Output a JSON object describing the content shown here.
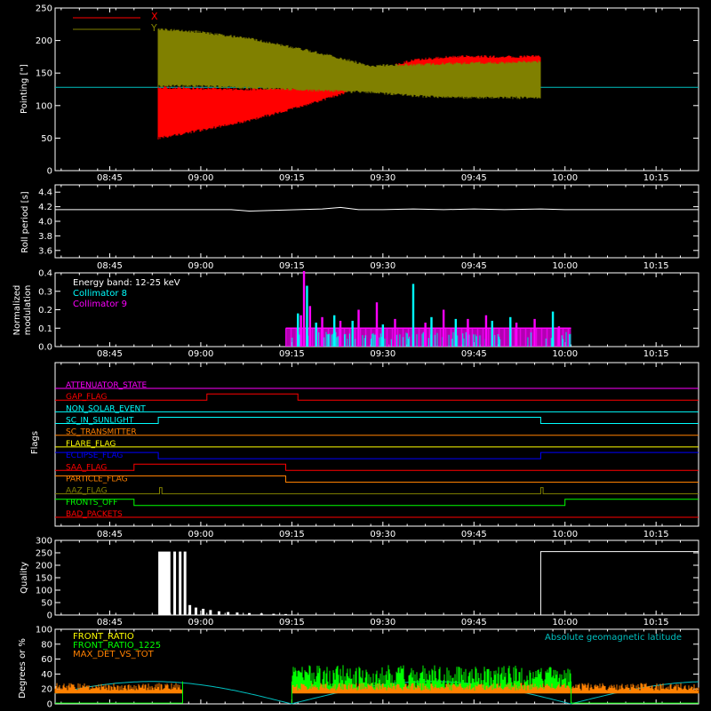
{
  "time_axis": {
    "tick_labels": [
      "08:45",
      "09:00",
      "09:15",
      "09:30",
      "09:45",
      "10:00",
      "10:15"
    ],
    "tick_minutes": [
      525,
      540,
      555,
      570,
      585,
      600,
      615
    ],
    "range_minutes": [
      516,
      622
    ]
  },
  "chart_data": [
    {
      "type": "line",
      "ylabel": "Pointing [\"]",
      "ylim": [
        0,
        250
      ],
      "yticks": [
        0,
        50,
        100,
        150,
        200,
        250
      ],
      "reference_level": 128,
      "data_window_minutes": [
        533,
        596
      ],
      "series": [
        {
          "name": "X",
          "color": "#ff0000",
          "envelope": {
            "t": [
              533,
              540,
              548,
              556,
              563,
              568,
              575,
              582,
              590,
              596
            ],
            "lo": [
              48,
              60,
              75,
              95,
              115,
              130,
              145,
              147,
              148,
              148
            ],
            "hi": [
              130,
              128,
              127,
              129,
              135,
              155,
              172,
              178,
              177,
              178
            ]
          }
        },
        {
          "name": "Y",
          "color": "#808000",
          "envelope": {
            "t": [
              533,
              540,
              548,
              556,
              563,
              568,
              575,
              582,
              590,
              596
            ],
            "lo": [
              128,
              128,
              125,
              122,
              120,
              118,
              113,
              110,
              110,
              110
            ],
            "hi": [
              220,
              215,
              205,
              190,
              175,
              163,
              165,
              167,
              168,
              170
            ]
          }
        }
      ]
    },
    {
      "type": "line",
      "ylabel": "Roll period [s]",
      "ylim": [
        3.5,
        4.5
      ],
      "yticks": [
        3.6,
        3.8,
        4.0,
        4.2,
        4.4
      ],
      "series": [
        {
          "name": "",
          "color": "#ffffff",
          "t": [
            516,
            545,
            548,
            556,
            560,
            563,
            566,
            570,
            575,
            580,
            585,
            590,
            596,
            600,
            610,
            622
          ],
          "values": [
            4.16,
            4.16,
            4.14,
            4.16,
            4.17,
            4.19,
            4.16,
            4.16,
            4.17,
            4.16,
            4.17,
            4.16,
            4.17,
            4.16,
            4.16,
            4.16
          ]
        }
      ]
    },
    {
      "type": "bar",
      "ylabel": "Normalized modulation",
      "ylim": [
        0,
        0.4
      ],
      "yticks": [
        0,
        0.1,
        0.2,
        0.3,
        0.4
      ],
      "window_minutes": [
        554,
        601
      ],
      "baseline": 0.1,
      "annotation": "Energy band: 12-25 keV",
      "series": [
        {
          "name": "Collimator 8",
          "color": "#00ffff",
          "spikes_t": [
            556,
            557.5,
            559,
            562,
            565,
            570,
            575,
            578,
            582,
            588,
            591,
            598
          ],
          "spikes_v": [
            0.18,
            0.33,
            0.13,
            0.17,
            0.14,
            0.12,
            0.34,
            0.16,
            0.15,
            0.14,
            0.16,
            0.19
          ]
        },
        {
          "name": "Collimator 9",
          "color": "#ff00ff",
          "spikes_t": [
            556.5,
            557,
            558,
            560,
            563,
            566,
            569,
            572,
            577,
            580,
            584,
            587,
            592,
            595,
            599
          ],
          "spikes_v": [
            0.17,
            0.41,
            0.22,
            0.16,
            0.14,
            0.2,
            0.24,
            0.15,
            0.13,
            0.2,
            0.15,
            0.17,
            0.13,
            0.15,
            0.11
          ]
        }
      ]
    },
    {
      "type": "line",
      "ylabel": "Flags",
      "flags": [
        {
          "name": "ATTENUATOR_STATE",
          "color": "#ff00ff",
          "transitions": []
        },
        {
          "name": "GAP_FLAG",
          "color": "#ff0000",
          "transitions": [
            [
              541,
              1
            ],
            [
              556,
              0
            ]
          ]
        },
        {
          "name": "NON_SOLAR_EVENT",
          "color": "#00ffff",
          "transitions": []
        },
        {
          "name": "SC_IN_SUNLIGHT",
          "color": "#00ffff",
          "transitions": [
            [
              533,
              1
            ],
            [
              596,
              0
            ]
          ]
        },
        {
          "name": "SC_TRANSMITTER",
          "color": "#ff8000",
          "transitions": []
        },
        {
          "name": "FLARE_FLAG",
          "color": "#ffff00",
          "transitions": []
        },
        {
          "name": "ECLIPSE_FLAG",
          "color": "#0000ff",
          "transitions": [
            [
              533,
              0
            ],
            [
              596,
              1
            ]
          ]
        },
        {
          "name": "SAA_FLAG",
          "color": "#ff0000",
          "transitions": [
            [
              529,
              1
            ],
            [
              554,
              0
            ]
          ]
        },
        {
          "name": "PARTICLE_FLAG",
          "color": "#ff8000",
          "transitions": [
            [
              554,
              0
            ]
          ]
        },
        {
          "name": "AAZ_FLAG",
          "color": "#808000",
          "transitions": [
            [
              533.2,
              1
            ],
            [
              533.6,
              0
            ],
            [
              596,
              1
            ],
            [
              596.4,
              0
            ]
          ]
        },
        {
          "name": "FRONTS_OFF",
          "color": "#00ff00",
          "transitions": [
            [
              529,
              0
            ],
            [
              600,
              1
            ]
          ]
        },
        {
          "name": "BAD_PACKETS",
          "color": "#ff0000",
          "transitions": []
        }
      ]
    },
    {
      "type": "bar",
      "ylabel": "Quality",
      "ylim": [
        0,
        300
      ],
      "yticks": [
        0,
        50,
        100,
        150,
        200,
        250,
        300
      ],
      "series": [
        {
          "name": "",
          "color": "#ffffff",
          "block_start_minutes": 533,
          "block_end_minutes": 535,
          "block_value": 255,
          "spikes_t": [
            535.7,
            536.6,
            537.4,
            538.2,
            539.2,
            540.4,
            541.6,
            543,
            544.5,
            546,
            548,
            550,
            552,
            554
          ],
          "spikes_v": [
            255,
            255,
            255,
            40,
            30,
            25,
            20,
            15,
            12,
            10,
            8,
            6,
            5,
            4
          ],
          "late_block_start_minutes": 596,
          "late_block_value": 255
        }
      ]
    },
    {
      "type": "line",
      "ylabel": "Degrees or %",
      "ylim": [
        0,
        100
      ],
      "yticks": [
        0,
        20,
        40,
        60,
        80,
        100
      ],
      "annotation": "Absolute geomagnetic latitude",
      "series": [
        {
          "name": "FRONT_RATIO",
          "color": "#ffff00"
        },
        {
          "name": "FRONT_RATIO_1225",
          "color": "#00ff00"
        },
        {
          "name": "MAX_DET_VS_TOT",
          "color": "#ff8000"
        },
        {
          "name": "",
          "color": "#00c0c0"
        }
      ]
    }
  ]
}
